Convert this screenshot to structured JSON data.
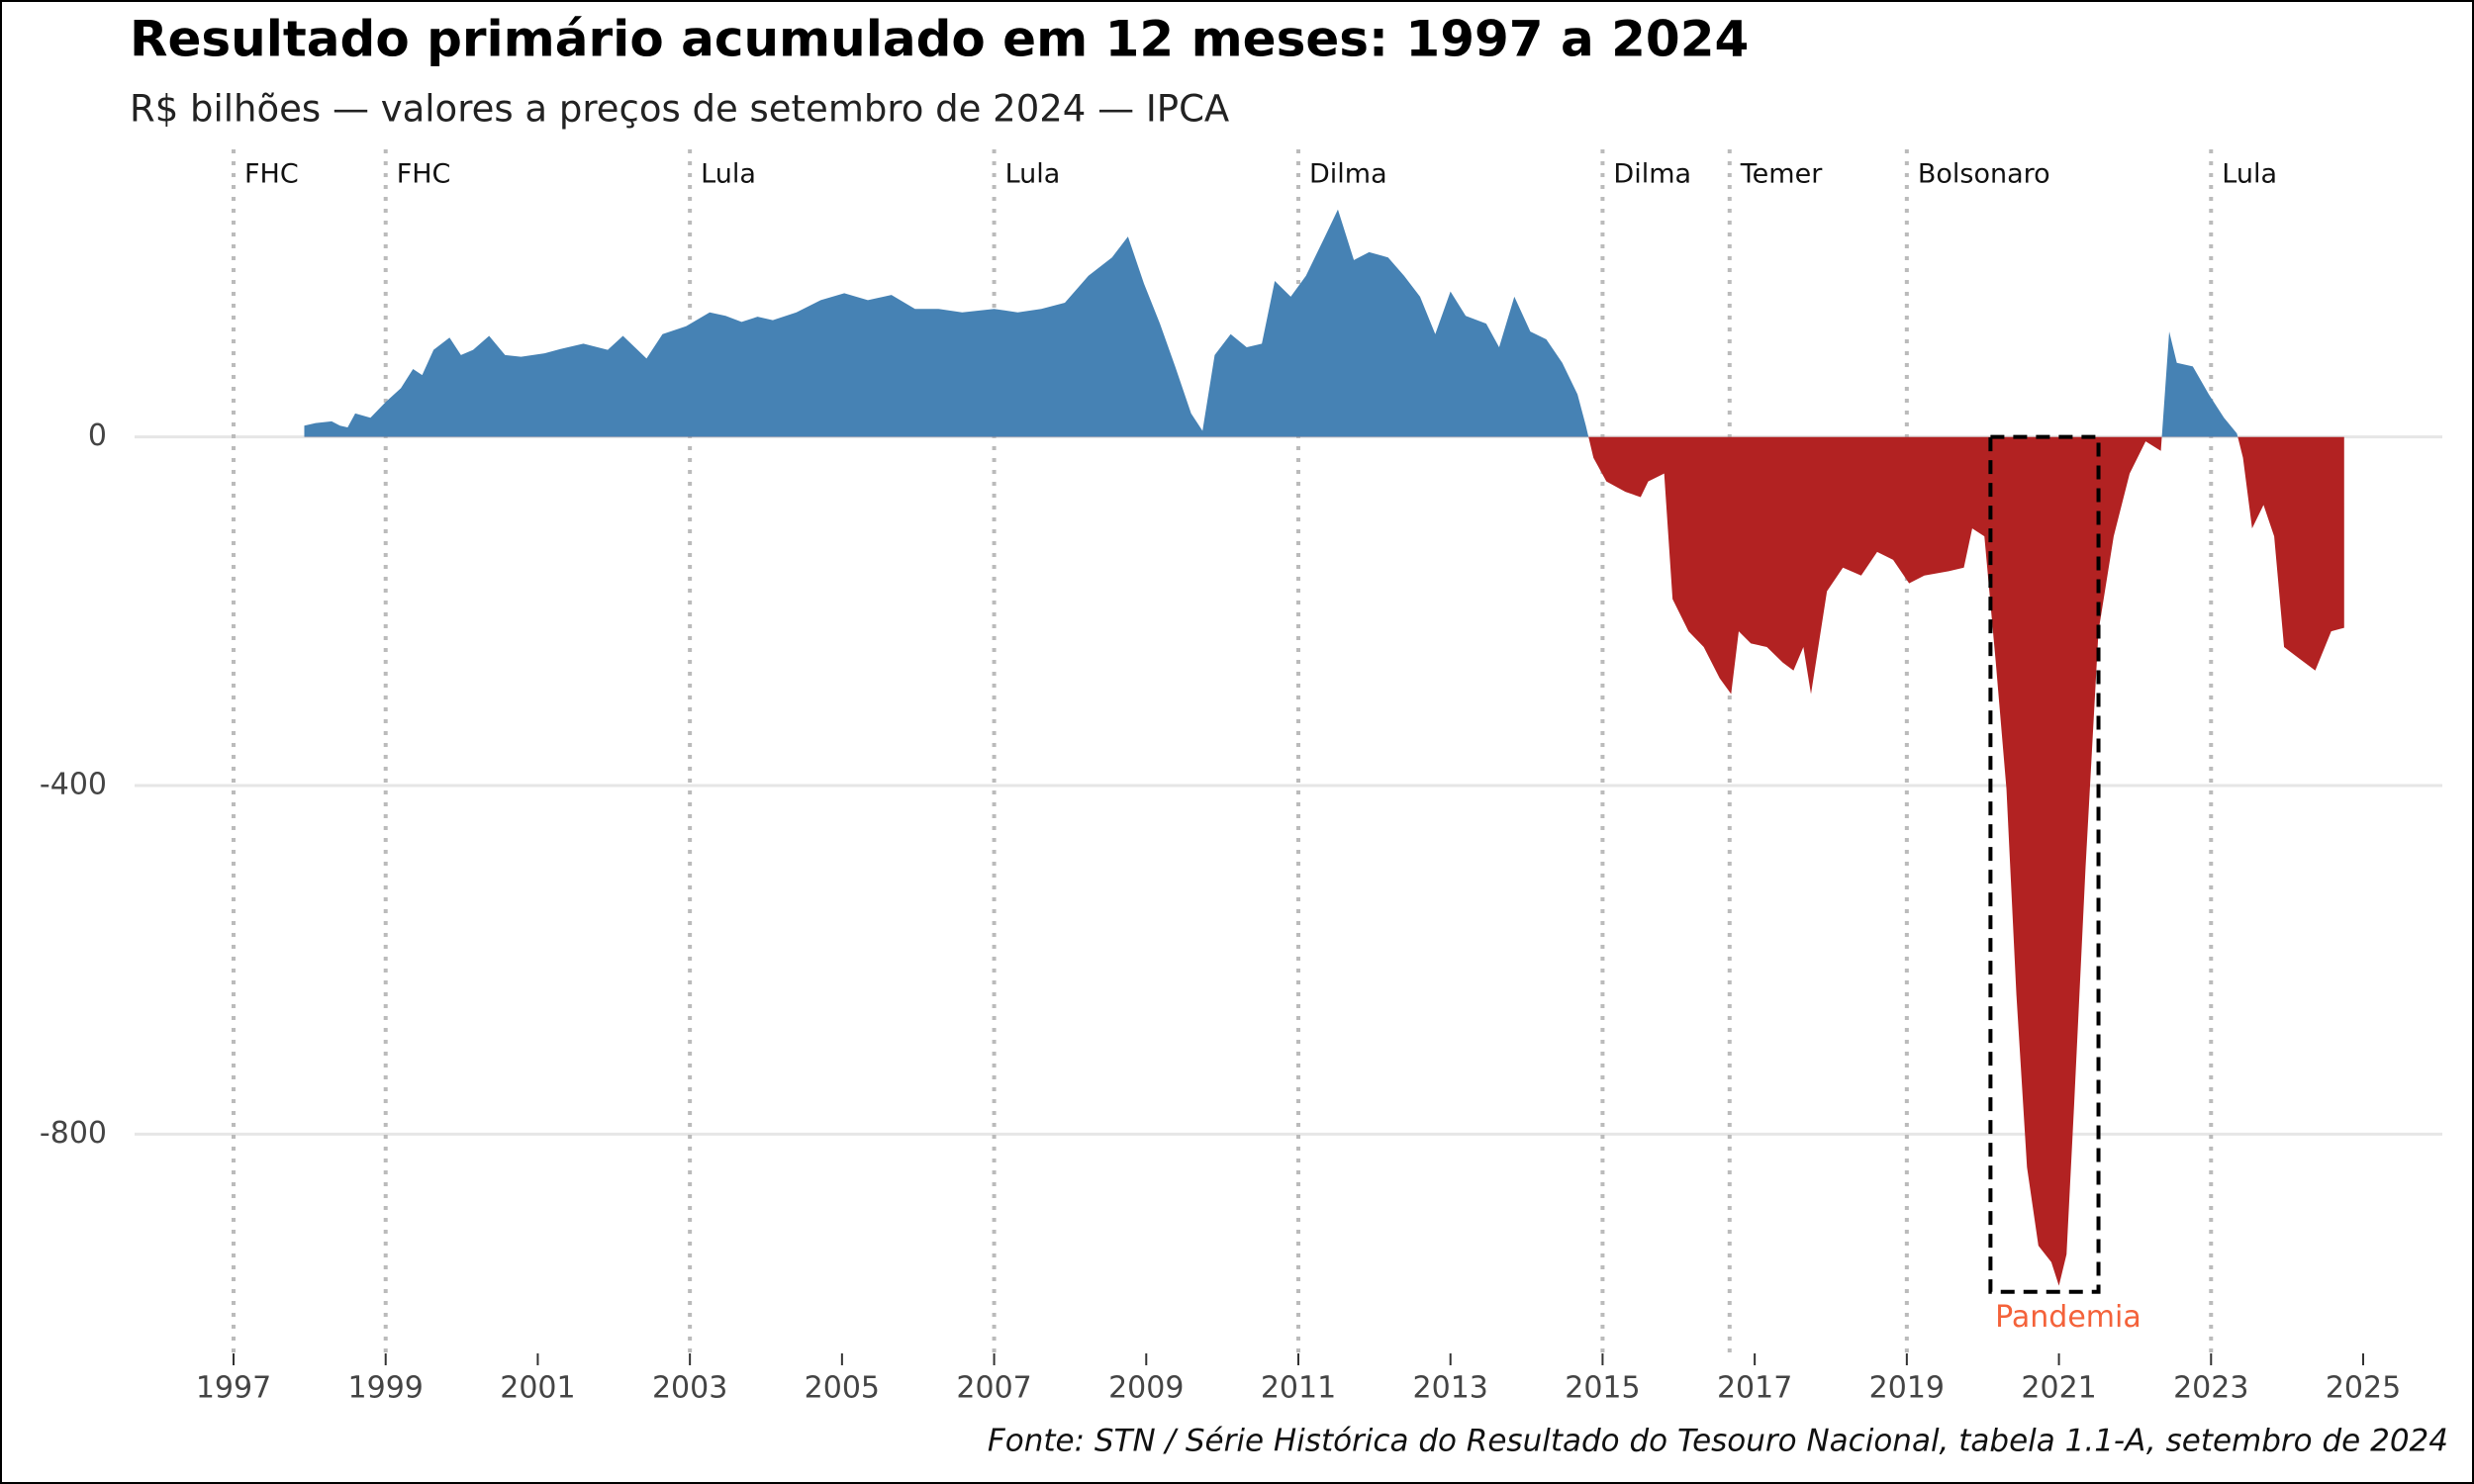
{
  "chart_data": {
    "type": "area",
    "title": "Resultado primário acumulado em 12 meses: 1997 a 2024",
    "subtitle": "R$ bilhões — valores a preços de setembro de 2024 — IPCA",
    "source": "Fonte: STN / Série Histórica do Resultado do Tesouro Nacional, tabela 1.1-A, setembro de 2024",
    "positive_color": "#4682b4",
    "negative_color": "#b22222",
    "xlim": [
      1997,
      2025
    ],
    "xticks": [
      1997,
      1999,
      2001,
      2003,
      2005,
      2007,
      2009,
      2011,
      2013,
      2015,
      2017,
      2019,
      2021,
      2023,
      2025
    ],
    "ylim": [
      -1046,
      330
    ],
    "yticks": [
      -800,
      -400,
      0
    ],
    "grid": true,
    "x": [
      1997.93,
      1998.08,
      1998.29,
      1998.4,
      1998.5,
      1998.6,
      1998.8,
      1999.0,
      1999.2,
      1999.36,
      1999.48,
      1999.63,
      1999.84,
      1999.99,
      2000.15,
      2000.36,
      2000.57,
      2000.78,
      2001.09,
      2001.3,
      2001.6,
      2001.92,
      2002.12,
      2002.43,
      2002.64,
      2002.95,
      2003.26,
      2003.47,
      2003.68,
      2003.89,
      2004.09,
      2004.4,
      2004.72,
      2005.03,
      2005.34,
      2005.65,
      2005.96,
      2006.27,
      2006.58,
      2007.0,
      2007.31,
      2007.62,
      2007.93,
      2008.24,
      2008.55,
      2008.76,
      2008.97,
      2009.18,
      2009.38,
      2009.59,
      2009.74,
      2009.9,
      2010.11,
      2010.32,
      2010.52,
      2010.69,
      2010.9,
      2011.1,
      2011.35,
      2011.52,
      2011.73,
      2011.93,
      2012.18,
      2012.39,
      2012.6,
      2012.8,
      2013.0,
      2013.2,
      2013.47,
      2013.64,
      2013.84,
      2014.05,
      2014.26,
      2014.47,
      2014.67,
      2014.78,
      2014.88,
      2015.05,
      2015.3,
      2015.5,
      2015.6,
      2015.81,
      2015.92,
      2016.13,
      2016.33,
      2016.54,
      2016.69,
      2016.79,
      2016.95,
      2017.16,
      2017.37,
      2017.51,
      2017.64,
      2017.74,
      2017.95,
      2018.16,
      2018.4,
      2018.61,
      2018.82,
      2019.03,
      2019.23,
      2019.55,
      2019.75,
      2019.86,
      2020.02,
      2020.17,
      2020.31,
      2020.44,
      2020.58,
      2020.73,
      2020.9,
      2021.0,
      2021.1,
      2021.2,
      2021.35,
      2021.52,
      2021.72,
      2021.93,
      2022.14,
      2022.34,
      2022.45,
      2022.55,
      2022.76,
      2022.97,
      2023.17,
      2023.34,
      2023.42,
      2023.54,
      2023.69,
      2023.83,
      2023.96,
      2024.17,
      2024.37,
      2024.58,
      2024.75
    ],
    "values": [
      13,
      16,
      18,
      13,
      11,
      27,
      22,
      40,
      56,
      78,
      71,
      100,
      114,
      94,
      100,
      116,
      94,
      92,
      96,
      101,
      107,
      100,
      116,
      90,
      118,
      127,
      143,
      139,
      132,
      138,
      134,
      143,
      157,
      165,
      157,
      163,
      147,
      147,
      143,
      147,
      143,
      147,
      154,
      185,
      206,
      230,
      176,
      130,
      81,
      27,
      7,
      94,
      118,
      103,
      107,
      179,
      161,
      185,
      230,
      261,
      203,
      212,
      206,
      185,
      161,
      118,
      167,
      139,
      130,
      103,
      161,
      121,
      112,
      85,
      49,
      13,
      -24,
      -51,
      -63,
      -69,
      -51,
      -42,
      -186,
      -223,
      -241,
      -277,
      -295,
      -223,
      -237,
      -241,
      -259,
      -268,
      -241,
      -295,
      -177,
      -150,
      -159,
      -132,
      -141,
      -168,
      -159,
      -154,
      -150,
      -105,
      -114,
      -259,
      -404,
      -639,
      -838,
      -928,
      -947,
      -974,
      -938,
      -766,
      -494,
      -223,
      -114,
      -42,
      -5,
      -16,
      121,
      85,
      81,
      49,
      22,
      4,
      -24,
      -105,
      -78,
      -114,
      -241,
      -255,
      -268,
      -223,
      -219
    ],
    "periods": [
      {
        "x": 1997,
        "label": "FHC"
      },
      {
        "x": 1999,
        "label": "FHC"
      },
      {
        "x": 2003,
        "label": "Lula"
      },
      {
        "x": 2007,
        "label": "Lula"
      },
      {
        "x": 2011,
        "label": "Dilma"
      },
      {
        "x": 2015,
        "label": "Dilma"
      },
      {
        "x": 2016.67,
        "label": "Temer"
      },
      {
        "x": 2019,
        "label": "Bolsonaro"
      },
      {
        "x": 2023,
        "label": "Lula"
      }
    ],
    "highlight": {
      "label": "Pandemia",
      "color": "#f4623a",
      "x": [
        2020.1,
        2021.52
      ],
      "y": [
        0,
        -981
      ]
    }
  }
}
